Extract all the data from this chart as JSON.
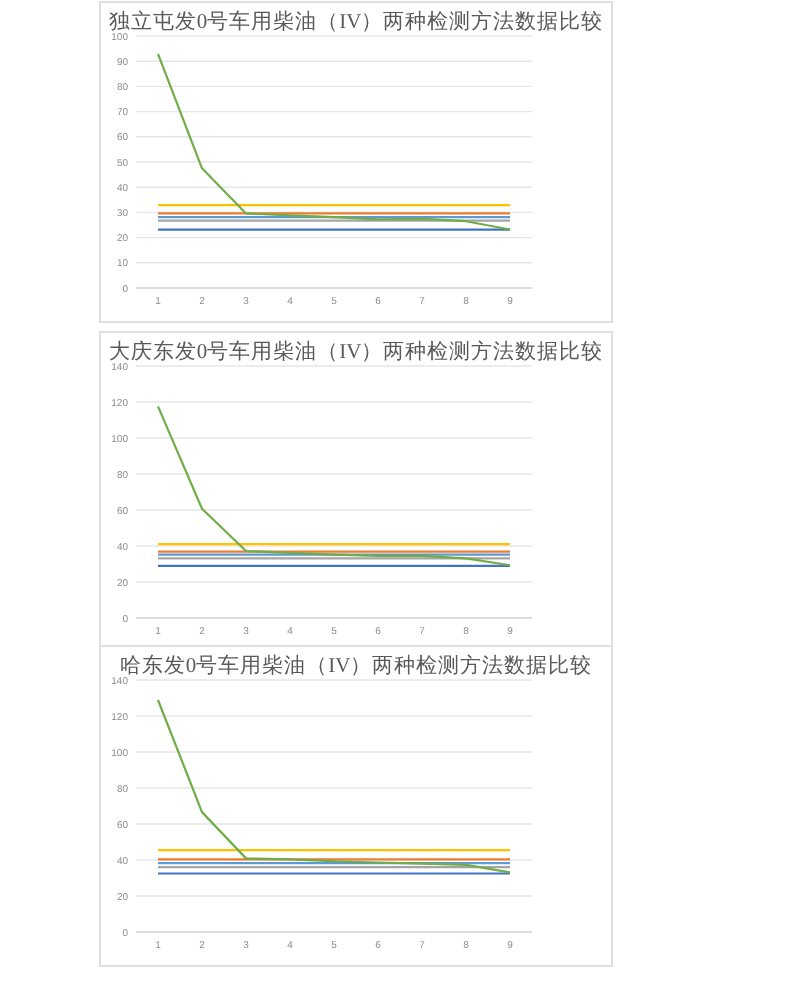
{
  "chart_data": [
    {
      "type": "line",
      "title": "独立屯发0号车用柴油（IV）两种检测方法数据比较",
      "categories": [
        "1",
        "2",
        "3",
        "4",
        "5",
        "6",
        "7",
        "8",
        "9"
      ],
      "ylim": [
        0,
        100
      ],
      "yticks": [
        0,
        10,
        20,
        30,
        40,
        50,
        60,
        70,
        80,
        90,
        100
      ],
      "grid": "y",
      "series": [
        {
          "color": "#5b9bd5",
          "values": [
            28.1,
            28.1,
            28.1,
            28.1,
            28.1,
            28.1,
            28.1,
            28.1,
            28.1
          ]
        },
        {
          "color": "#ed7d31",
          "values": [
            29.6,
            29.6,
            29.6,
            29.6,
            29.6,
            29.6,
            29.6,
            29.6,
            29.6
          ]
        },
        {
          "color": "#a5a5a5",
          "values": [
            26.7,
            26.7,
            26.7,
            26.7,
            26.7,
            26.7,
            26.7,
            26.7,
            26.7
          ]
        },
        {
          "color": "#ffc000",
          "values": [
            32.9,
            32.9,
            32.9,
            32.9,
            32.9,
            32.9,
            32.9,
            32.9,
            32.9
          ]
        },
        {
          "color": "#4472c4",
          "values": [
            23.2,
            23.2,
            23.2,
            23.2,
            23.2,
            23.2,
            23.2,
            23.2,
            23.2
          ]
        },
        {
          "color": "#70ad47",
          "values": [
            92.9,
            47.5,
            29.6,
            28.8,
            28.1,
            27.2,
            27.4,
            26.5,
            23.2
          ]
        }
      ]
    },
    {
      "type": "line",
      "title": "大庆东发0号车用柴油（IV）两种检测方法数据比较",
      "categories": [
        "1",
        "2",
        "3",
        "4",
        "5",
        "6",
        "7",
        "8",
        "9"
      ],
      "ylim": [
        0,
        140
      ],
      "yticks": [
        0,
        20,
        40,
        60,
        80,
        100,
        120,
        140
      ],
      "grid": "y",
      "series": [
        {
          "color": "#5b9bd5",
          "values": [
            35.2,
            35.2,
            35.2,
            35.2,
            35.2,
            35.2,
            35.2,
            35.2,
            35.2
          ]
        },
        {
          "color": "#ed7d31",
          "values": [
            36.9,
            36.9,
            36.9,
            36.9,
            36.9,
            36.9,
            36.9,
            36.9,
            36.9
          ]
        },
        {
          "color": "#a5a5a5",
          "values": [
            33.1,
            33.1,
            33.1,
            33.1,
            33.1,
            33.1,
            33.1,
            33.1,
            33.1
          ]
        },
        {
          "color": "#ffc000",
          "values": [
            41,
            41,
            41,
            41,
            41,
            41,
            41,
            41,
            41
          ]
        },
        {
          "color": "#4472c4",
          "values": [
            29,
            29,
            29,
            29,
            29,
            29,
            29,
            29,
            29
          ]
        },
        {
          "color": "#70ad47",
          "values": [
            117.6,
            60.7,
            37.2,
            36.2,
            35.2,
            34.5,
            34.5,
            33.1,
            29.3
          ]
        }
      ]
    },
    {
      "type": "line",
      "title": "哈东发0号车用柴油（IV）两种检测方法数据比较",
      "categories": [
        "1",
        "2",
        "3",
        "4",
        "5",
        "6",
        "7",
        "8",
        "9"
      ],
      "ylim": [
        0,
        140
      ],
      "yticks": [
        0,
        20,
        40,
        60,
        80,
        100,
        120,
        140
      ],
      "grid": "y",
      "series": [
        {
          "color": "#5b9bd5",
          "values": [
            38.3,
            38.3,
            38.3,
            38.3,
            38.3,
            38.3,
            38.3,
            38.3,
            38.3
          ]
        },
        {
          "color": "#ed7d31",
          "values": [
            40.3,
            40.3,
            40.3,
            40.3,
            40.3,
            40.3,
            40.3,
            40.3,
            40.3
          ]
        },
        {
          "color": "#a5a5a5",
          "values": [
            36,
            36,
            36,
            36,
            36,
            36,
            36,
            36,
            36
          ]
        },
        {
          "color": "#ffc000",
          "values": [
            45.5,
            45.5,
            45.5,
            45.5,
            45.5,
            45.5,
            45.5,
            45.5,
            45.5
          ]
        },
        {
          "color": "#4472c4",
          "values": [
            32.5,
            32.5,
            32.5,
            32.5,
            32.5,
            32.5,
            32.5,
            32.5,
            32.5
          ]
        },
        {
          "color": "#70ad47",
          "values": [
            128.9,
            66.6,
            40.9,
            40.3,
            39.3,
            38.6,
            38,
            37.3,
            33.1
          ]
        }
      ]
    }
  ]
}
